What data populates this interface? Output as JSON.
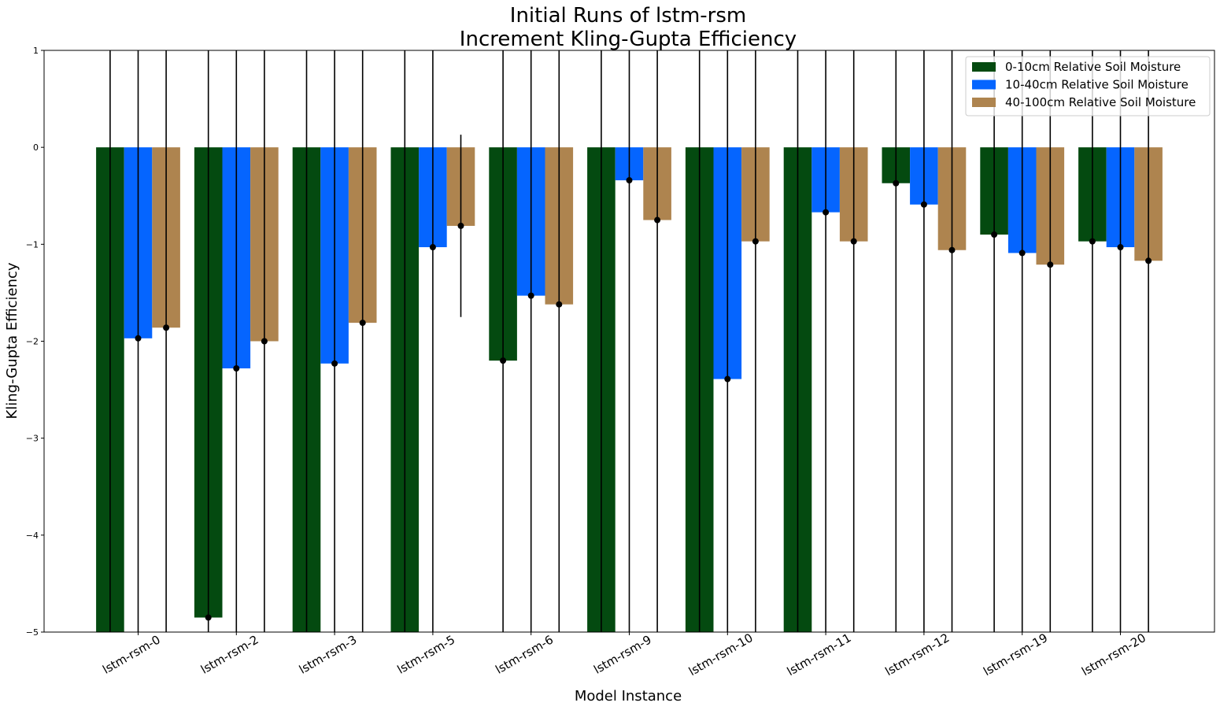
{
  "chart_data": {
    "type": "bar",
    "title": "Initial Runs of lstm-rsm",
    "subtitle": "Increment Kling-Gupta Efficiency",
    "xlabel": "Model Instance",
    "ylabel": "Kling-Gupta Efficiency",
    "ylim": [
      -5,
      1
    ],
    "yticks": [
      1,
      0,
      -1,
      -2,
      -3,
      -4,
      -5
    ],
    "ytick_labels": [
      "1",
      "0",
      "−1",
      "−2",
      "−3",
      "−4",
      "−5"
    ],
    "legend_position": "top-right",
    "grid": false,
    "categories": [
      "lstm-rsm-0",
      "lstm-rsm-2",
      "lstm-rsm-3",
      "lstm-rsm-5",
      "lstm-rsm-6",
      "lstm-rsm-9",
      "lstm-rsm-10",
      "lstm-rsm-11",
      "lstm-rsm-12",
      "lstm-rsm-19",
      "lstm-rsm-20"
    ],
    "series": [
      {
        "name": "0-10cm Relative Soil Moisture",
        "color": "#044a10",
        "values": [
          -5.2,
          -4.85,
          -5.2,
          -5.2,
          -2.2,
          -5.2,
          -5.2,
          -5.2,
          -0.37,
          -0.9,
          -0.97
        ],
        "error_low": [
          -6.0,
          -6.0,
          -6.0,
          -6.0,
          -6.0,
          -6.0,
          -6.0,
          -6.0,
          -6.0,
          -6.0,
          -6.0
        ],
        "error_high": [
          1.5,
          1.5,
          1.5,
          1.5,
          1.5,
          1.5,
          1.5,
          1.5,
          1.5,
          1.5,
          1.5
        ]
      },
      {
        "name": "10-40cm Relative Soil Moisture",
        "color": "#0565ff",
        "values": [
          -1.97,
          -2.28,
          -2.23,
          -1.03,
          -1.53,
          -0.34,
          -2.39,
          -0.67,
          -0.59,
          -1.09,
          -1.03
        ],
        "error_low": [
          -6.0,
          -6.0,
          -6.0,
          -6.0,
          -6.0,
          -6.0,
          -6.0,
          -6.0,
          -6.0,
          -6.0,
          -6.0
        ],
        "error_high": [
          1.5,
          1.5,
          1.5,
          1.5,
          1.5,
          1.5,
          1.5,
          1.5,
          1.5,
          1.5,
          1.5
        ]
      },
      {
        "name": "40-100cm Relative Soil Moisture",
        "color": "#ae844f",
        "values": [
          -1.86,
          -2.0,
          -1.81,
          -0.81,
          -1.62,
          -0.75,
          -0.97,
          -0.97,
          -1.06,
          -1.21,
          -1.17
        ],
        "error_low": [
          -6.0,
          -6.0,
          -6.0,
          -1.75,
          -6.0,
          -6.0,
          -6.0,
          -6.0,
          -6.0,
          -6.0,
          -6.0
        ],
        "error_high": [
          1.5,
          1.5,
          1.5,
          0.13,
          1.5,
          1.5,
          1.5,
          1.5,
          1.5,
          1.5,
          1.5
        ]
      }
    ]
  }
}
